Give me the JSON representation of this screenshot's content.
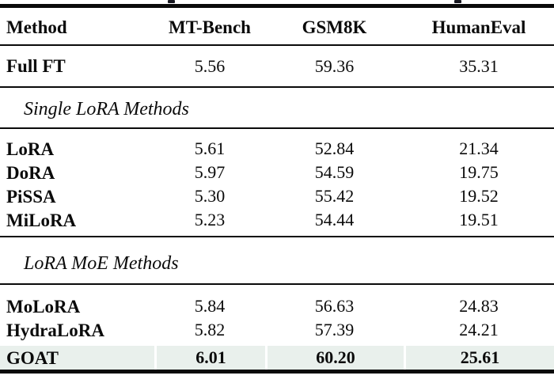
{
  "table": {
    "columns": [
      "Method",
      "MT-Bench",
      "GSM8K",
      "HumanEval"
    ],
    "sections": [
      {
        "rows": [
          {
            "method": "Full FT",
            "values": [
              "5.56",
              "59.36",
              "35.31"
            ]
          }
        ]
      },
      {
        "header": "Single LoRA Methods",
        "rows": [
          {
            "method": "LoRA",
            "values": [
              "5.61",
              "52.84",
              "21.34"
            ]
          },
          {
            "method": "DoRA",
            "values": [
              "5.97",
              "54.59",
              "19.75"
            ]
          },
          {
            "method": "PiSSA",
            "values": [
              "5.30",
              "55.42",
              "19.52"
            ]
          },
          {
            "method": "MiLoRA",
            "values": [
              "5.23",
              "54.44",
              "19.51"
            ]
          }
        ]
      },
      {
        "header": "LoRA MoE Methods",
        "rows": [
          {
            "method": "MoLoRA",
            "values": [
              "5.84",
              "56.63",
              "24.83"
            ]
          },
          {
            "method": "HydraLoRA",
            "values": [
              "5.82",
              "57.39",
              "24.21"
            ]
          },
          {
            "method": "GOAT",
            "values": [
              "6.01",
              "60.20",
              "25.61"
            ],
            "highlight": true,
            "bold": true
          }
        ]
      }
    ],
    "highlight_color": "#e9f0ec",
    "rule_color": "#0a0a0a"
  }
}
